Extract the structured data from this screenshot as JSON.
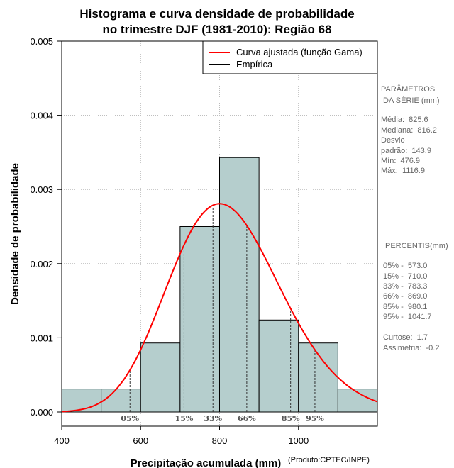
{
  "chart_data": {
    "type": "bar",
    "title_line1": "Histograma e curva densidade de probabilidade",
    "title_line2": "no trimestre DJF (1981-2010): Região 68",
    "xlabel": "Precipitação acumulada (mm)",
    "ylabel": "Densidade de probabilidade",
    "source": "(Produto:CPTEC/INPE)",
    "xlim": [
      400,
      1200
    ],
    "ylim": [
      0,
      0.005
    ],
    "x_ticks": [
      400,
      600,
      800,
      1000
    ],
    "x_tick_labels": [
      "400",
      "600",
      "800",
      "1000"
    ],
    "y_ticks": [
      0,
      0.001,
      0.002,
      0.003,
      0.004,
      0.005
    ],
    "y_tick_labels": [
      "0.000",
      "0.001",
      "0.002",
      "0.003",
      "0.004",
      "0.005"
    ],
    "bins": [
      {
        "start": 400,
        "end": 500,
        "density": 0.00031
      },
      {
        "start": 500,
        "end": 600,
        "density": 0.00031
      },
      {
        "start": 600,
        "end": 700,
        "density": 0.00093
      },
      {
        "start": 700,
        "end": 800,
        "density": 0.0025
      },
      {
        "start": 800,
        "end": 900,
        "density": 0.00343
      },
      {
        "start": 900,
        "end": 1000,
        "density": 0.00124
      },
      {
        "start": 1000,
        "end": 1100,
        "density": 0.00093
      },
      {
        "start": 1100,
        "end": 1200,
        "density": 0.00031
      }
    ],
    "gamma_curve": {
      "mean": 825.6,
      "sd": 143.9
    },
    "percentile_lines": [
      {
        "label": "05%",
        "value": 573.0
      },
      {
        "label": "15%",
        "value": 710.0
      },
      {
        "label": "33%",
        "value": 783.3
      },
      {
        "label": "66%",
        "value": 869.0
      },
      {
        "label": "85%",
        "value": 980.1
      },
      {
        "label": "95%",
        "value": 1041.7
      }
    ],
    "legend": [
      {
        "label": "Curva ajustada (função Gama)",
        "color": "#ff0000"
      },
      {
        "label": "Empírica",
        "color": "#000000"
      }
    ],
    "colors": {
      "bar_fill": "#b5cecd",
      "curve": "#ff0000",
      "grid": "#aaaaaa"
    }
  },
  "side_panel": {
    "params_title": [
      "PARÂMETROS",
      " DA SÉRIE (mm)"
    ],
    "params": [
      "Média:  825.6",
      "Mediana:  816.2",
      "Desvio",
      "padrão:  143.9",
      "Mín:  476.9",
      "Máx:  1116.9"
    ],
    "percentis_title": "PERCENTIS(mm)",
    "percentis": [
      "05% -  573.0",
      "15% -  710.0",
      "33% -  783.3",
      "66% -  869.0",
      "85% -  980.1",
      "95% -  1041.7"
    ],
    "extra": [
      "Curtose:  1.7",
      "Assimetria:  -0.2"
    ]
  }
}
